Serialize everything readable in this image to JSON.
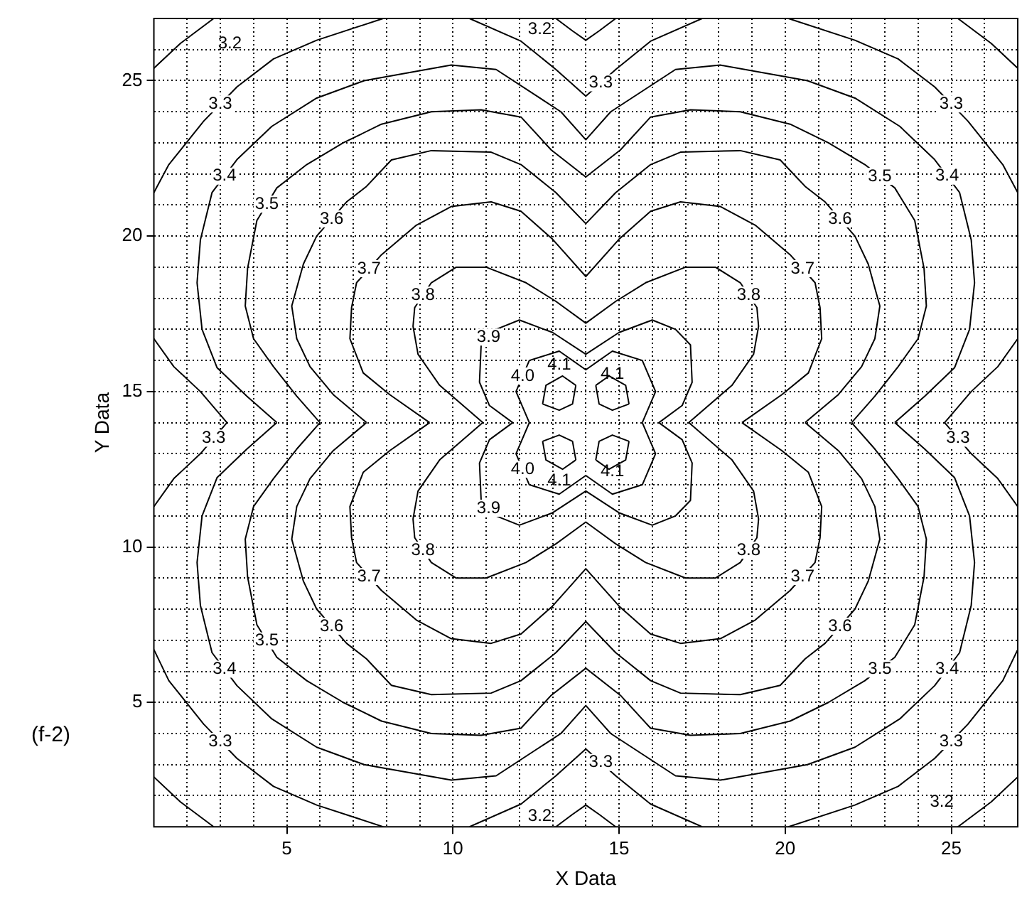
{
  "chart_data": {
    "type": "line",
    "xlabel": "X Data",
    "ylabel": "Y Data",
    "annotations": [
      "(f-2)"
    ],
    "xlim": [
      1,
      27
    ],
    "ylim": [
      1,
      27
    ],
    "xticks": [
      {
        "value": 1,
        "label": null
      },
      {
        "value": 2,
        "label": null
      },
      {
        "value": 3,
        "label": null
      },
      {
        "value": 4,
        "label": null
      },
      5,
      {
        "value": 6,
        "label": null
      },
      {
        "value": 7,
        "label": null
      },
      {
        "value": 8,
        "label": null
      },
      {
        "value": 9,
        "label": null
      },
      10,
      {
        "value": 11,
        "label": null
      },
      {
        "value": 12,
        "label": null
      },
      {
        "value": 13,
        "label": null
      },
      {
        "value": 14,
        "label": null
      },
      15,
      {
        "value": 16,
        "label": null
      },
      {
        "value": 17,
        "label": null
      },
      {
        "value": 18,
        "label": null
      },
      {
        "value": 19,
        "label": null
      },
      20,
      {
        "value": 21,
        "label": null
      },
      {
        "value": 22,
        "label": null
      },
      {
        "value": 23,
        "label": null
      },
      {
        "value": 24,
        "label": null
      },
      25,
      {
        "value": 26,
        "label": null
      },
      {
        "value": 27,
        "label": null
      }
    ],
    "yticks": [
      {
        "value": 1,
        "label": null
      },
      {
        "value": 2,
        "label": null
      },
      {
        "value": 3,
        "label": null
      },
      {
        "value": 4,
        "label": null
      },
      5,
      {
        "value": 6,
        "label": null
      },
      {
        "value": 7,
        "label": null
      },
      {
        "value": 8,
        "label": null
      },
      {
        "value": 9,
        "label": null
      },
      10,
      {
        "value": 11,
        "label": null
      },
      {
        "value": 12,
        "label": null
      },
      {
        "value": 13,
        "label": null
      },
      {
        "value": 14,
        "label": null
      },
      15,
      {
        "value": 16,
        "label": null
      },
      {
        "value": 17,
        "label": null
      },
      {
        "value": 18,
        "label": null
      },
      {
        "value": 19,
        "label": null
      },
      20,
      {
        "value": 21,
        "label": null
      },
      {
        "value": 22,
        "label": null
      },
      {
        "value": 23,
        "label": null
      },
      {
        "value": 24,
        "label": null
      },
      25,
      {
        "value": 26,
        "label": null
      },
      {
        "value": 27,
        "label": null
      }
    ],
    "grid": true,
    "marker": "none",
    "line_style": "solid",
    "series": [
      {
        "name": "3.2",
        "color": "#000000",
        "x": [
          1,
          1.8,
          2.8,
          null,
          25.2,
          26.2,
          27,
          null,
          1,
          1.8,
          2.8,
          null,
          25.2,
          26.2,
          27,
          null,
          13.1,
          13.6,
          14,
          14.4,
          14.9,
          null,
          13.1,
          13.6,
          14,
          14.4,
          14.9
        ],
        "values": [
          25.4,
          26.2,
          27,
          null,
          27,
          26.2,
          25.4,
          null,
          2.6,
          1.8,
          1,
          null,
          1,
          1.8,
          2.6,
          null,
          27,
          26.6,
          26.3,
          26.6,
          27,
          null,
          1,
          1.4,
          1.7,
          1.4,
          1
        ]
      },
      {
        "name": "3.3",
        "color": "#000000",
        "x": [
          10.5,
          12.05,
          13.1,
          14,
          14.9,
          15.95,
          17.5,
          null,
          10.5,
          12.05,
          13.1,
          14,
          14.9,
          15.95,
          17.5,
          null,
          7.9,
          5.9,
          4.6,
          3.5,
          2.5,
          1.45,
          1,
          null,
          20.1,
          22.1,
          23.4,
          24.5,
          25.5,
          26.55,
          27,
          null,
          7.9,
          5.9,
          4.6,
          3.5,
          2.5,
          1.45,
          1,
          null,
          20.1,
          22.1,
          23.4,
          24.5,
          25.5,
          26.55,
          27,
          null,
          1,
          1.6,
          2.4,
          3.2,
          2.4,
          1.6,
          1,
          null,
          27,
          26.4,
          25.6,
          24.8,
          25.6,
          26.4,
          27
        ],
        "values": [
          27,
          26.27,
          25.36,
          24.5,
          25.36,
          26.27,
          27,
          null,
          1,
          1.73,
          2.64,
          3.5,
          2.64,
          1.73,
          1,
          null,
          27,
          26.3,
          25.7,
          24.8,
          23.7,
          22.3,
          21.4,
          null,
          27,
          26.3,
          25.7,
          24.8,
          23.7,
          22.3,
          21.4,
          null,
          1,
          1.7,
          2.3,
          3.2,
          4.3,
          5.7,
          6.7,
          null,
          1,
          1.7,
          2.3,
          3.2,
          4.3,
          5.7,
          6.7,
          null,
          16.7,
          15.8,
          15,
          14,
          13,
          12.2,
          11.3,
          null,
          16.7,
          15.8,
          15,
          14,
          13,
          12.2,
          11.3
        ]
      },
      {
        "name": "3.4",
        "color": "#000000",
        "x": [
          4.7,
          3.8,
          2.9,
          2.45,
          2.3,
          2.4,
          2.75,
          3.5,
          4.55,
          5.9,
          7.33,
          9.95,
          11.3,
          13.25,
          14,
          14.75,
          16.7,
          18.05,
          20.67,
          22.1,
          23.45,
          24.5,
          25.25,
          25.6,
          25.7,
          25.55,
          25.1,
          24.2,
          23.3,
          null,
          4.7,
          3.8,
          2.9,
          2.45,
          2.3,
          2.4,
          2.75,
          3.5,
          4.55,
          5.9,
          7.33,
          9.95,
          11.3,
          13.25,
          14,
          14.75,
          16.7,
          18.05,
          20.67,
          22.1,
          23.45,
          24.5,
          25.25,
          25.6,
          25.7,
          25.55,
          25.1,
          24.2,
          23.3
        ],
        "values": [
          14,
          14.85,
          15.77,
          17,
          18.5,
          19.88,
          21.4,
          22.46,
          23.53,
          24.44,
          25,
          25.5,
          25.36,
          24,
          23.1,
          24,
          25.36,
          25.5,
          25,
          24.44,
          23.53,
          22.46,
          21.4,
          19.88,
          18.5,
          17,
          15.77,
          14.85,
          14,
          null,
          14,
          13.15,
          12.23,
          11,
          9.5,
          8.12,
          6.6,
          5.54,
          4.47,
          3.56,
          3,
          2.5,
          2.64,
          4,
          4.9,
          4,
          2.64,
          2.5,
          3,
          3.56,
          4.47,
          5.54,
          6.6,
          8.12,
          9.5,
          11,
          12.23,
          13.15,
          14
        ]
      },
      {
        "name": "3.5",
        "color": "#000000",
        "x": [
          6,
          5.3,
          4.6,
          4,
          3.75,
          3.82,
          4.1,
          4.7,
          5.6,
          6.7,
          7.85,
          9.35,
          10.85,
          12.05,
          12.96,
          14,
          15.04,
          15.95,
          17.15,
          18.65,
          20.15,
          21.3,
          22.4,
          23.3,
          23.9,
          24.18,
          24.25,
          24,
          23.4,
          22.7,
          22,
          null,
          6,
          5.3,
          4.6,
          4,
          3.75,
          3.82,
          4.1,
          4.7,
          5.6,
          6.7,
          7.85,
          9.35,
          10.85,
          12.05,
          12.96,
          14,
          15.04,
          15.95,
          17.15,
          18.65,
          20.15,
          21.3,
          22.4,
          23.3,
          23.9,
          24.18,
          24.25,
          24,
          23.4,
          22.7,
          22
        ],
        "values": [
          14,
          14.85,
          15.8,
          16.7,
          17.75,
          18.96,
          20.5,
          21.55,
          22.3,
          23,
          23.6,
          24,
          24.06,
          23.83,
          22.77,
          21.9,
          22.77,
          23.83,
          24.06,
          24,
          23.6,
          23,
          22.3,
          21.55,
          20.5,
          18.96,
          17.75,
          16.7,
          15.8,
          14.85,
          14,
          null,
          14,
          13.15,
          12.2,
          11.3,
          10.25,
          9.04,
          7.5,
          6.45,
          5.7,
          5,
          4.4,
          4,
          3.94,
          4.17,
          5.23,
          6.1,
          5.23,
          4.17,
          3.94,
          4,
          4.4,
          5,
          5.7,
          6.45,
          7.5,
          9.04,
          10.25,
          11.3,
          12.2,
          13.15,
          14
        ]
      },
      {
        "name": "3.6",
        "color": "#000000",
        "x": [
          7.4,
          6.4,
          5.7,
          5.3,
          5.15,
          5.5,
          5.9,
          6.8,
          7.4,
          8.15,
          9.35,
          11.15,
          12.05,
          13.1,
          14,
          14.9,
          15.95,
          16.85,
          18.65,
          19.85,
          20.6,
          21.2,
          22.1,
          22.5,
          22.85,
          22.7,
          22.3,
          21.6,
          20.6,
          null,
          7.4,
          6.4,
          5.7,
          5.3,
          5.15,
          5.5,
          5.9,
          6.8,
          7.4,
          8.15,
          9.35,
          11.15,
          12.05,
          13.1,
          14,
          14.9,
          15.95,
          16.85,
          18.65,
          19.85,
          20.6,
          21.2,
          22.1,
          22.5,
          22.85,
          22.7,
          22.3,
          21.6,
          20.6
        ],
        "values": [
          14,
          14.9,
          15.8,
          16.7,
          17.75,
          19.1,
          20,
          21.1,
          21.6,
          22.45,
          22.75,
          22.7,
          22.3,
          21.4,
          20.4,
          21.4,
          22.3,
          22.7,
          22.75,
          22.45,
          21.6,
          21.1,
          20,
          19.1,
          17.75,
          16.7,
          15.8,
          14.9,
          14,
          null,
          14,
          13.1,
          12.2,
          11.3,
          10.25,
          8.9,
          8,
          6.9,
          6.4,
          5.55,
          5.25,
          5.3,
          5.7,
          6.6,
          7.6,
          6.6,
          5.7,
          5.3,
          5.25,
          5.55,
          6.4,
          6.9,
          8,
          8.9,
          10.25,
          11.3,
          12.2,
          13.1,
          14
        ]
      },
      {
        "name": "3.7",
        "color": "#000000",
        "x": [
          9.3,
          8.1,
          7.3,
          6.9,
          6.95,
          7.1,
          7.85,
          8.9,
          9.95,
          11.15,
          12.05,
          13,
          14,
          15,
          15.95,
          16.85,
          18.05,
          19.1,
          20.15,
          20.9,
          21.05,
          21.1,
          20.7,
          19.9,
          18.7,
          null,
          9.3,
          8.1,
          7.3,
          6.9,
          6.95,
          7.1,
          7.85,
          8.9,
          9.95,
          11.15,
          12.05,
          13,
          14,
          15,
          15.95,
          16.85,
          18.05,
          19.1,
          20.15,
          20.9,
          21.05,
          21.1,
          20.7,
          19.9,
          18.7
        ],
        "values": [
          14,
          14.9,
          15.6,
          16.7,
          17.7,
          18.5,
          19.4,
          20.35,
          20.95,
          21.1,
          20.8,
          19.9,
          18.7,
          19.9,
          20.8,
          21.1,
          20.95,
          20.35,
          19.4,
          18.5,
          17.7,
          16.7,
          15.6,
          14.9,
          14,
          null,
          14,
          13.1,
          12.4,
          11.3,
          10.3,
          9.5,
          8.6,
          7.65,
          7.05,
          6.9,
          7.2,
          8.1,
          9.3,
          8.1,
          7.2,
          6.9,
          7.05,
          7.65,
          8.6,
          9.5,
          10.3,
          11.3,
          12.4,
          13.1,
          14
        ]
      },
      {
        "name": "3.8",
        "color": "#000000",
        "x": [
          10.9,
          9.6,
          8.95,
          8.8,
          8.85,
          9.35,
          10.1,
          11,
          12.2,
          13.1,
          14,
          14.9,
          15.8,
          17,
          17.9,
          18.65,
          19.15,
          19.2,
          19.05,
          18.4,
          17.1,
          null,
          10.9,
          9.6,
          8.95,
          8.8,
          8.85,
          9.35,
          10.1,
          11,
          12.2,
          13.1,
          14,
          14.9,
          15.8,
          17,
          17.9,
          18.65,
          19.15,
          19.2,
          19.05,
          18.4,
          17.1
        ],
        "values": [
          14,
          15.2,
          16.2,
          17.1,
          17.7,
          18.5,
          19,
          19,
          18.5,
          17.9,
          17.2,
          17.9,
          18.5,
          19,
          19,
          18.5,
          17.7,
          17.1,
          16.2,
          15.2,
          14,
          null,
          14,
          12.8,
          11.8,
          10.9,
          10.3,
          9.5,
          9,
          9,
          9.5,
          10.1,
          10.8,
          10.1,
          9.5,
          9,
          9,
          9.5,
          10.3,
          10.9,
          11.8,
          12.8,
          14
        ]
      },
      {
        "name": "3.9",
        "color": "#000000",
        "x": [
          11.8,
          11.1,
          10.8,
          10.85,
          11.3,
          12,
          13,
          14,
          15,
          16,
          16.7,
          17.15,
          17.2,
          16.9,
          16.2,
          null,
          11.8,
          11.1,
          10.8,
          10.85,
          11.3,
          12,
          13,
          14,
          15,
          16,
          16.7,
          17.15,
          17.2,
          16.9,
          16.2
        ],
        "values": [
          14,
          14.55,
          15.3,
          16.5,
          17,
          17.3,
          16.9,
          16.2,
          16.9,
          17.3,
          17,
          16.5,
          15.3,
          14.55,
          14,
          null,
          14,
          13.45,
          12.7,
          11.5,
          11,
          10.7,
          11.1,
          11.8,
          11.1,
          10.7,
          11,
          11.5,
          12.7,
          13.45,
          14
        ]
      },
      {
        "name": "4.0",
        "color": "#000000",
        "x": [
          12.3,
          11.9,
          12.3,
          13.2,
          14,
          14.8,
          15.7,
          16.1,
          15.7,
          null,
          12.3,
          11.9,
          12.3,
          13.2,
          14,
          14.8,
          15.7,
          16.1,
          15.7
        ],
        "values": [
          14,
          15,
          16,
          16.3,
          15.7,
          16.3,
          16,
          15,
          14,
          null,
          14,
          13,
          12,
          11.7,
          12.3,
          11.7,
          12,
          13,
          14
        ]
      },
      {
        "name": "4.1",
        "color": "#000000",
        "x": [
          12.7,
          12.8,
          13.3,
          13.7,
          null,
          12.7,
          13.2,
          13.6,
          13.7,
          null,
          14.3,
          14.7,
          15.2,
          15.3,
          null,
          14.3,
          14.4,
          14.8,
          15.3,
          null,
          12.7,
          12.8,
          13.3,
          13.7,
          null,
          12.7,
          13.2,
          13.6,
          13.7,
          null,
          14.3,
          14.7,
          15.2,
          15.3,
          null,
          14.3,
          14.4,
          14.8,
          15.3
        ],
        "values": [
          14.6,
          15.2,
          15.5,
          15.2,
          null,
          14.6,
          14.4,
          14.6,
          15.2,
          null,
          15.2,
          15.5,
          15.2,
          14.6,
          null,
          15.2,
          14.6,
          14.4,
          14.6,
          null,
          13.4,
          12.8,
          12.5,
          12.8,
          null,
          13.4,
          13.6,
          13.4,
          12.8,
          null,
          12.8,
          12.5,
          12.8,
          13.4,
          null,
          12.8,
          13.4,
          13.6,
          13.4
        ]
      }
    ]
  }
}
